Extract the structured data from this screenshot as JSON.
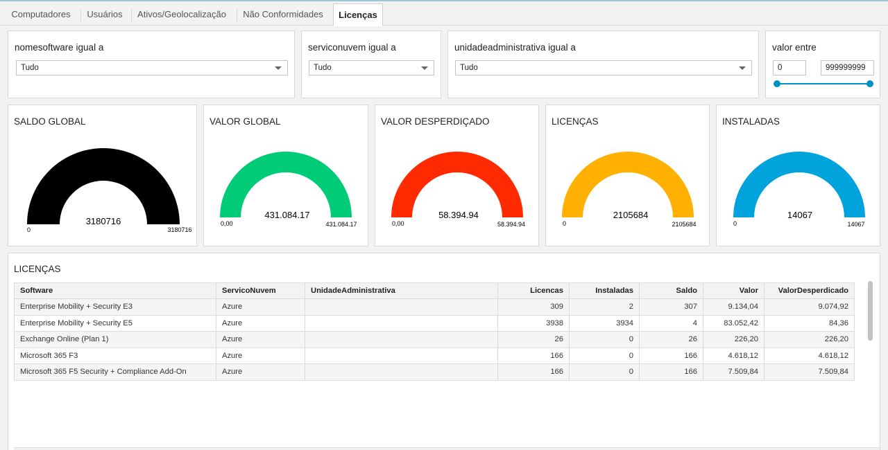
{
  "tabs": [
    {
      "label": "Computadores"
    },
    {
      "label": "Usuários"
    },
    {
      "label": "Ativos/Geolocalização"
    },
    {
      "label": "Não Conformidades"
    },
    {
      "label": "Licenças"
    }
  ],
  "filters": {
    "software": {
      "label": "nomesoftware igual a",
      "value": "Tudo"
    },
    "nuvem": {
      "label": "serviconuvem igual a",
      "value": "Tudo"
    },
    "unidade": {
      "label": "unidadeadministrativa igual a",
      "value": "Tudo"
    },
    "valor": {
      "label": "valor entre",
      "min": "0",
      "max": "999999999",
      "range_fraction": [
        0,
        1
      ]
    }
  },
  "colors": {
    "black": "#000000",
    "green": "#00cc77",
    "red": "#ff2a00",
    "orange": "#ffb000",
    "blue": "#00a3dc",
    "slider": "#0091c4"
  },
  "gauges": [
    {
      "title": "SALDO GLOBAL",
      "value": "3180716",
      "min": "0",
      "max": "3180716",
      "fraction": 1.0,
      "color": "#000000"
    },
    {
      "title": "VALOR GLOBAL",
      "value": "431.084.17",
      "min": "0,00",
      "max": "431.084.17",
      "fraction": 1.0,
      "color": "#00cc77"
    },
    {
      "title": "VALOR DESPERDIÇADO",
      "value": "58.394.94",
      "min": "0,00",
      "max": "58.394.94",
      "fraction": 1.0,
      "color": "#ff2a00"
    },
    {
      "title": "LICENÇAS",
      "value": "2105684",
      "min": "0",
      "max": "2105684",
      "fraction": 1.0,
      "color": "#ffb000"
    },
    {
      "title": "INSTALADAS",
      "value": "14067",
      "min": "0",
      "max": "14067",
      "fraction": 1.0,
      "color": "#00a3dc"
    }
  ],
  "table": {
    "title": "LICENÇAS",
    "headers": [
      "Software",
      "ServicoNuvem",
      "UnidadeAdministrativa",
      "Licencas",
      "Instaladas",
      "Saldo",
      "Valor",
      "ValorDesperdicado"
    ],
    "rows": [
      [
        "Enterprise Mobility + Security E3",
        "Azure",
        "",
        "309",
        "2",
        "307",
        "9.134,04",
        "9.074,92"
      ],
      [
        "Enterprise Mobility + Security E5",
        "Azure",
        "",
        "3938",
        "3934",
        "4",
        "83.052,42",
        "84,36"
      ],
      [
        "Exchange Online (Plan 1)",
        "Azure",
        "",
        "26",
        "0",
        "26",
        "226,20",
        "226,20"
      ],
      [
        "Microsoft 365 F3",
        "Azure",
        "",
        "166",
        "0",
        "166",
        "4.618,12",
        "4.618,12"
      ],
      [
        "Microsoft 365 F5 Security + Compliance Add-On",
        "Azure",
        "",
        "166",
        "0",
        "166",
        "7.509,84",
        "7.509,84"
      ]
    ]
  }
}
